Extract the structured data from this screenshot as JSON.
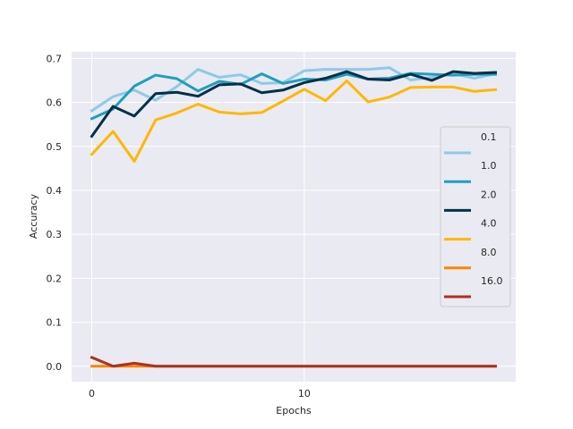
{
  "chart_data": {
    "type": "line",
    "xlabel": "Epochs",
    "ylabel": "Accuracy",
    "xlim": [
      -0.95,
      19.95
    ],
    "ylim": [
      -0.035,
      0.715
    ],
    "xticks": [
      0,
      10
    ],
    "yticks": [
      0.0,
      0.1,
      0.2,
      0.3,
      0.4,
      0.5,
      0.6,
      0.7
    ],
    "ytick_labels": [
      "0.0",
      "0.1",
      "0.2",
      "0.3",
      "0.4",
      "0.5",
      "0.6",
      "0.7"
    ],
    "grid": true,
    "legend_position": "right",
    "x": [
      0,
      1,
      2,
      3,
      4,
      5,
      6,
      7,
      8,
      9,
      10,
      11,
      12,
      13,
      14,
      15,
      16,
      17,
      18,
      19
    ],
    "series": [
      {
        "name": "0.1",
        "color": "#8ecae6",
        "values": [
          0.581,
          0.613,
          0.628,
          0.605,
          0.636,
          0.675,
          0.657,
          0.663,
          0.643,
          0.645,
          0.672,
          0.675,
          0.675,
          0.675,
          0.679,
          0.651,
          0.657,
          0.665,
          0.655,
          0.665
        ]
      },
      {
        "name": "1.0",
        "color": "#219ebc",
        "values": [
          0.563,
          0.585,
          0.637,
          0.662,
          0.654,
          0.626,
          0.648,
          0.641,
          0.665,
          0.643,
          0.653,
          0.651,
          0.664,
          0.653,
          0.655,
          0.666,
          0.664,
          0.662,
          0.664,
          0.664
        ]
      },
      {
        "name": "2.0",
        "color": "#023047",
        "values": [
          0.523,
          0.591,
          0.569,
          0.62,
          0.623,
          0.614,
          0.64,
          0.642,
          0.622,
          0.628,
          0.645,
          0.655,
          0.67,
          0.653,
          0.651,
          0.664,
          0.65,
          0.67,
          0.666,
          0.668
        ]
      },
      {
        "name": "4.0",
        "color": "#ffb703",
        "values": [
          0.482,
          0.534,
          0.466,
          0.56,
          0.576,
          0.596,
          0.578,
          0.574,
          0.577,
          0.603,
          0.63,
          0.604,
          0.649,
          0.601,
          0.612,
          0.634,
          0.635,
          0.635,
          0.625,
          0.629
        ]
      },
      {
        "name": "8.0",
        "color": "#fb8500",
        "values": [
          0.0,
          0.0,
          0.0,
          0.0,
          0.0,
          0.0,
          0.0,
          0.0,
          0.0,
          0.0,
          0.0,
          0.0,
          0.0,
          0.0,
          0.0,
          0.0,
          0.0,
          0.0,
          0.0,
          0.0
        ]
      },
      {
        "name": "16.0",
        "color": "#ae3121",
        "values": [
          0.02,
          0.0,
          0.007,
          0.0,
          0.0,
          0.0,
          0.0,
          0.0,
          0.0,
          0.0,
          0.0,
          0.0,
          0.0,
          0.0,
          0.0,
          0.0,
          0.0,
          0.0,
          0.0,
          0.0
        ]
      }
    ],
    "colors": {
      "plot_background": "#eaeaf2",
      "grid": "#ffffff",
      "legend_frame": "#cccccc"
    }
  }
}
